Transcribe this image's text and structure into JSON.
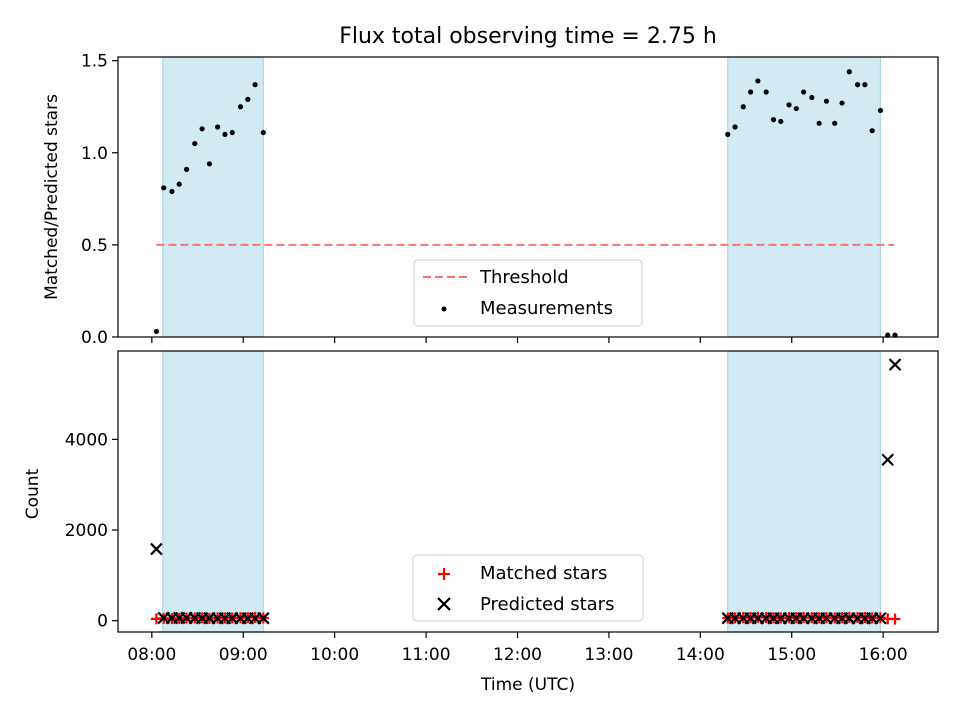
{
  "chart_data": {
    "type": "scatter",
    "title": "Flux total observing time = 2.75 h",
    "xlabel": "Time (UTC)",
    "x_ticks": [
      "08:00",
      "09:00",
      "10:00",
      "11:00",
      "12:00",
      "13:00",
      "14:00",
      "15:00",
      "16:00"
    ],
    "xlim_hours": [
      7.63,
      16.6
    ],
    "shaded_intervals_hours": [
      [
        8.12,
        9.22
      ],
      [
        14.3,
        15.97
      ]
    ],
    "colors": {
      "shade": "#add8e6",
      "threshold": "#ff7070",
      "measurement": "#000000",
      "matched": "#ff0000",
      "predicted": "#000000"
    },
    "panels": [
      {
        "name": "ratio",
        "ylabel": "Matched/Predicted stars",
        "ylim": [
          0,
          1.52
        ],
        "y_ticks": [
          0.0,
          0.5,
          1.0,
          1.5
        ],
        "y_tick_labels": [
          "0.0",
          "0.5",
          "1.0",
          "1.5"
        ],
        "threshold": {
          "value": 0.5,
          "x_range_hours": [
            8.05,
            16.12
          ]
        },
        "legend": {
          "location": "lower center",
          "entries": [
            "Threshold",
            "Measurements"
          ]
        },
        "measurements": {
          "x": [
            8.05,
            8.13,
            8.22,
            8.3,
            8.38,
            8.47,
            8.55,
            8.63,
            8.72,
            8.8,
            8.88,
            8.97,
            9.05,
            9.13,
            9.22,
            14.3,
            14.38,
            14.47,
            14.55,
            14.63,
            14.72,
            14.8,
            14.88,
            14.97,
            15.05,
            15.13,
            15.22,
            15.3,
            15.38,
            15.47,
            15.55,
            15.63,
            15.72,
            15.8,
            15.88,
            15.97,
            16.05,
            16.13
          ],
          "y": [
            0.03,
            0.81,
            0.79,
            0.83,
            0.91,
            1.05,
            1.13,
            0.94,
            1.14,
            1.1,
            1.11,
            1.25,
            1.29,
            1.37,
            1.11,
            1.1,
            1.14,
            1.25,
            1.33,
            1.39,
            1.33,
            1.18,
            1.17,
            1.26,
            1.24,
            1.33,
            1.3,
            1.16,
            1.28,
            1.16,
            1.27,
            1.44,
            1.37,
            1.37,
            1.12,
            1.23,
            0.01,
            0.01
          ]
        }
      },
      {
        "name": "counts",
        "ylabel": "Count",
        "ylim": [
          -250,
          5950
        ],
        "y_ticks": [
          0,
          2000,
          4000
        ],
        "y_tick_labels": [
          "0",
          "2000",
          "4000"
        ],
        "legend": {
          "location": "lower center",
          "entries": [
            "Matched stars",
            "Predicted stars"
          ]
        },
        "matched": {
          "x": [
            8.05,
            8.13,
            8.22,
            8.3,
            8.38,
            8.47,
            8.55,
            8.63,
            8.72,
            8.8,
            8.88,
            8.97,
            9.05,
            9.13,
            9.22,
            14.3,
            14.38,
            14.47,
            14.55,
            14.63,
            14.72,
            14.8,
            14.88,
            14.97,
            15.05,
            15.13,
            15.22,
            15.3,
            15.38,
            15.47,
            15.55,
            15.63,
            15.72,
            15.8,
            15.88,
            15.97,
            16.05,
            16.13
          ],
          "y": [
            40,
            50,
            45,
            50,
            55,
            60,
            62,
            50,
            60,
            58,
            60,
            66,
            68,
            72,
            60,
            60,
            62,
            66,
            70,
            72,
            70,
            64,
            62,
            66,
            66,
            70,
            68,
            62,
            68,
            62,
            66,
            74,
            70,
            70,
            60,
            64,
            40,
            35
          ]
        },
        "predicted": {
          "x": [
            8.05,
            8.13,
            8.22,
            8.3,
            8.38,
            8.47,
            8.55,
            8.63,
            8.72,
            8.8,
            8.88,
            8.97,
            9.05,
            9.13,
            9.22,
            14.3,
            14.38,
            14.47,
            14.55,
            14.63,
            14.72,
            14.8,
            14.88,
            14.97,
            15.05,
            15.13,
            15.22,
            15.3,
            15.38,
            15.47,
            15.55,
            15.63,
            15.72,
            15.8,
            15.88,
            15.97,
            16.05,
            16.13
          ],
          "y": [
            1580,
            60,
            58,
            60,
            60,
            58,
            56,
            55,
            54,
            54,
            55,
            54,
            54,
            53,
            55,
            55,
            55,
            54,
            54,
            53,
            54,
            55,
            54,
            54,
            54,
            53,
            53,
            54,
            54,
            54,
            53,
            52,
            52,
            52,
            54,
            53,
            3550,
            5650
          ]
        }
      }
    ]
  }
}
